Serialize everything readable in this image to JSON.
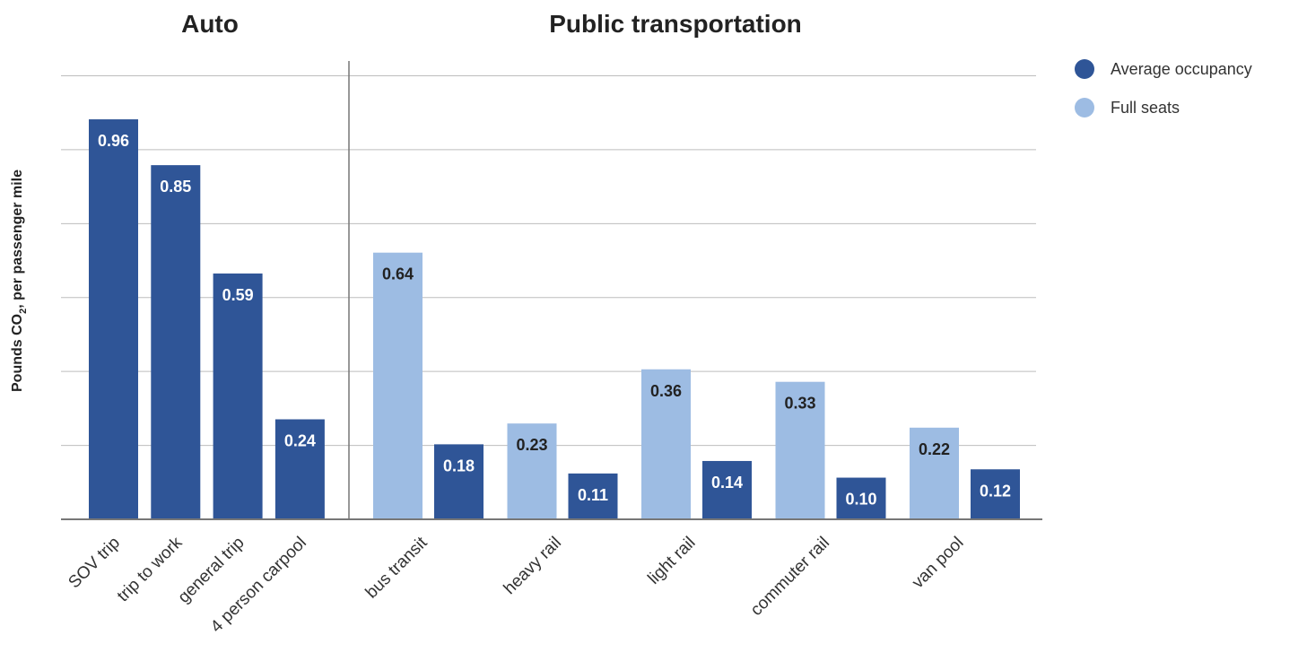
{
  "chart_data": {
    "type": "bar",
    "ylabel_main": "Pounds CO",
    "ylabel_sub": "2",
    "ylabel_rest": ", per passenger mile",
    "ylim": [
      0,
      1.1
    ],
    "grid": true,
    "legend_position": "top-right",
    "colors": {
      "average_occupancy": "#2f5597",
      "full_seats": "#9dbce3"
    },
    "legend": [
      {
        "key": "average_occupancy",
        "label": "Average occupancy"
      },
      {
        "key": "full_seats",
        "label": "Full seats"
      }
    ],
    "groups": [
      {
        "title": "Auto",
        "categories": [
          "SOV trip",
          "trip to work",
          "general trip",
          "4 person carpool"
        ]
      },
      {
        "title": "Public transportation",
        "categories": [
          "bus transit",
          "heavy rail",
          "light rail",
          "commuter rail",
          "van pool"
        ]
      }
    ],
    "bars": [
      {
        "category": "SOV trip",
        "series": "average_occupancy",
        "value": 0.96,
        "label": "0.96"
      },
      {
        "category": "trip to work",
        "series": "average_occupancy",
        "value": 0.85,
        "label": "0.85"
      },
      {
        "category": "general trip",
        "series": "average_occupancy",
        "value": 0.59,
        "label": "0.59"
      },
      {
        "category": "4 person carpool",
        "series": "average_occupancy",
        "value": 0.24,
        "label": "0.24"
      },
      {
        "category": "bus transit",
        "series": "full_seats",
        "value": 0.64,
        "label": "0.64"
      },
      {
        "category": "bus transit",
        "series": "average_occupancy",
        "value": 0.18,
        "label": "0.18"
      },
      {
        "category": "heavy rail",
        "series": "full_seats",
        "value": 0.23,
        "label": "0.23"
      },
      {
        "category": "heavy rail",
        "series": "average_occupancy",
        "value": 0.11,
        "label": "0.11"
      },
      {
        "category": "light rail",
        "series": "full_seats",
        "value": 0.36,
        "label": "0.36"
      },
      {
        "category": "light rail",
        "series": "average_occupancy",
        "value": 0.14,
        "label": "0.14"
      },
      {
        "category": "commuter rail",
        "series": "full_seats",
        "value": 0.33,
        "label": "0.33"
      },
      {
        "category": "commuter rail",
        "series": "average_occupancy",
        "value": 0.1,
        "label": "0.10"
      },
      {
        "category": "van pool",
        "series": "full_seats",
        "value": 0.22,
        "label": "0.22"
      },
      {
        "category": "van pool",
        "series": "average_occupancy",
        "value": 0.12,
        "label": "0.12"
      }
    ]
  }
}
